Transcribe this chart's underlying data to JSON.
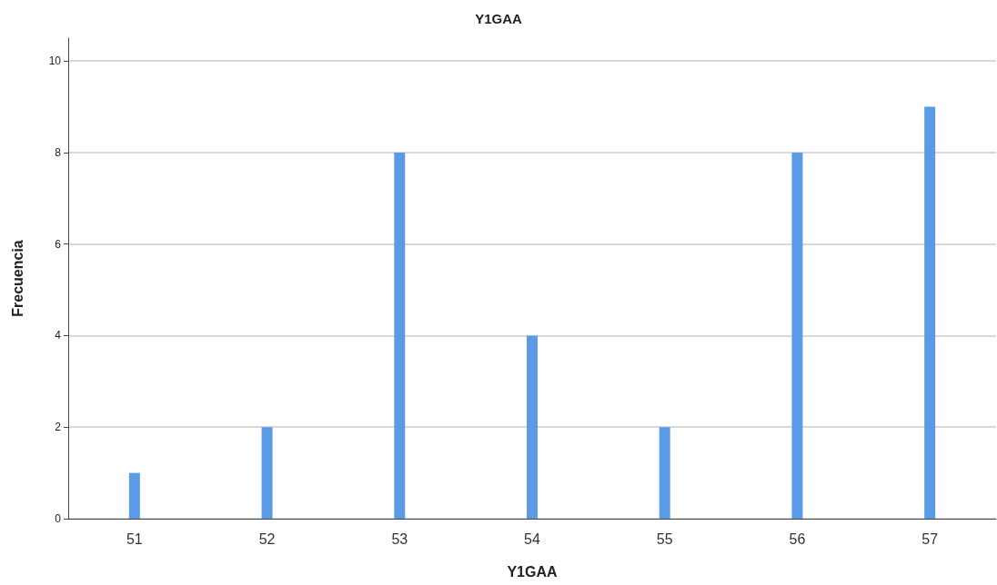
{
  "chart_data": {
    "type": "bar",
    "title": "Y1GAA",
    "xlabel": "Y1GAA",
    "ylabel": "Frecuencia",
    "categories": [
      "51",
      "52",
      "53",
      "54",
      "55",
      "56",
      "57"
    ],
    "values": [
      1,
      2,
      8,
      4,
      2,
      8,
      9
    ],
    "color": "#5b9be6",
    "ylim": [
      0,
      10.5
    ],
    "yticks": [
      0,
      2,
      4,
      6,
      8,
      10
    ],
    "grid": "y"
  }
}
